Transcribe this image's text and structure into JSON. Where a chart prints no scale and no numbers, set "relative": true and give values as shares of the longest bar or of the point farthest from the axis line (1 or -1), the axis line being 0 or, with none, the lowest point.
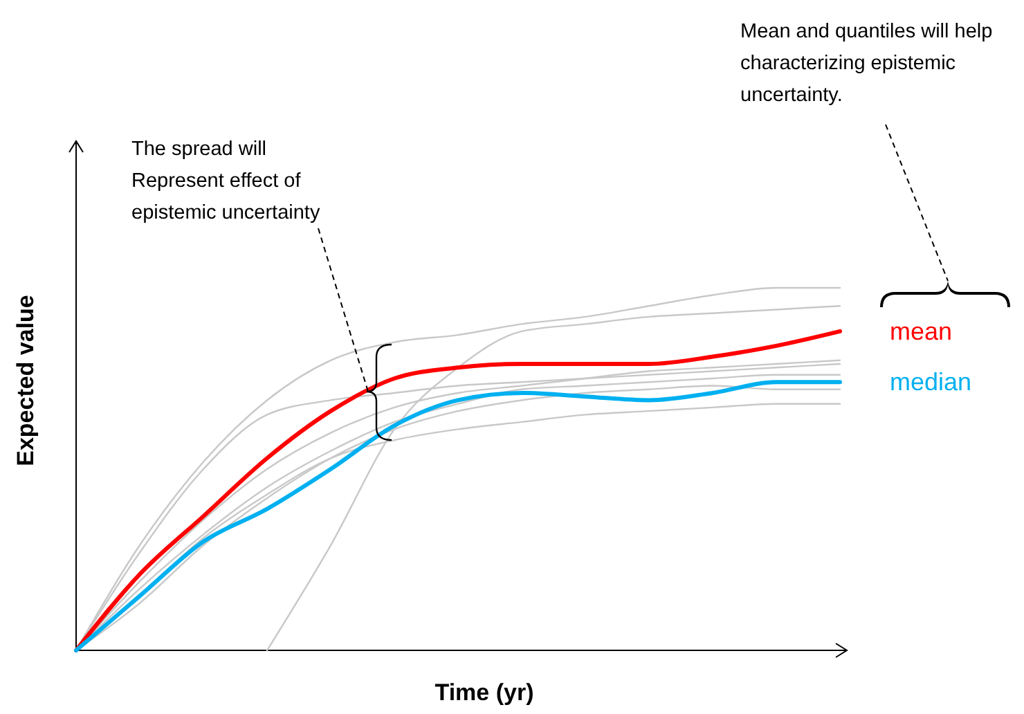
{
  "chart_data": {
    "type": "line",
    "relative": true,
    "xlabel": "Time (yr)",
    "ylabel": "Expected value",
    "categories": [
      null,
      null,
      null,
      null,
      null,
      null,
      null,
      null,
      null,
      null,
      null,
      null,
      null
    ],
    "series": [
      {
        "color": "#c8c8c8",
        "values": [
          0,
          0.29,
          0.52,
          0.69,
          0.8,
          0.85,
          0.87,
          0.9,
          0.92,
          0.95,
          0.98,
          1,
          1
        ]
      },
      {
        "color": "#c8c8c8",
        "values": [
          null,
          null,
          null,
          0,
          0.29,
          0.61,
          0.78,
          0.88,
          0.9,
          0.92,
          0.93,
          0.94,
          0.95
        ]
      },
      {
        "color": "#c8c8c8",
        "values": [
          0,
          0.27,
          0.5,
          0.65,
          0.69,
          0.71,
          0.73,
          0.74,
          0.75,
          0.76,
          0.77,
          0.78,
          0.79
        ]
      },
      {
        "color": "#c8c8c8",
        "values": [
          0,
          0.19,
          0.36,
          0.5,
          0.6,
          0.67,
          0.71,
          0.73,
          0.75,
          0.77,
          0.78,
          0.79,
          0.8
        ]
      },
      {
        "color": "#c8c8c8",
        "values": [
          0,
          0.17,
          0.32,
          0.45,
          0.55,
          0.63,
          0.68,
          0.72,
          0.73,
          0.74,
          0.75,
          0.76,
          0.76
        ]
      },
      {
        "color": "#c8c8c8",
        "values": [
          0,
          0.15,
          0.31,
          0.43,
          0.53,
          0.58,
          0.61,
          0.63,
          0.65,
          0.66,
          0.67,
          0.68,
          0.68
        ]
      },
      {
        "color": "#c8c8c8",
        "values": [
          0,
          0.13,
          0.29,
          0.42,
          0.53,
          0.61,
          0.66,
          0.69,
          0.71,
          0.72,
          0.73,
          0.72,
          0.72
        ]
      },
      {
        "name": "mean",
        "color": "#ff0000",
        "values": [
          0,
          0.21,
          0.37,
          0.53,
          0.66,
          0.75,
          0.78,
          0.79,
          0.79,
          0.79,
          0.81,
          0.84,
          0.88
        ]
      },
      {
        "name": "median",
        "color": "#00b0f0",
        "values": [
          0,
          0.15,
          0.3,
          0.39,
          0.5,
          0.62,
          0.69,
          0.71,
          0.7,
          0.69,
          0.71,
          0.74,
          0.74
        ]
      }
    ],
    "annotations": [
      "The spread will\nRepresent effect of\nepistemic uncertainty",
      "Mean and quantiles will help\ncharacterizing epistemic\nuncertainty."
    ]
  }
}
